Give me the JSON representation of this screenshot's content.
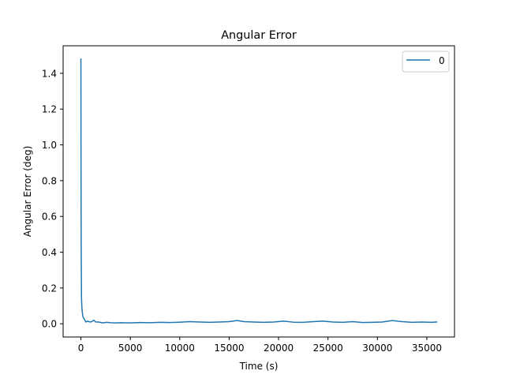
{
  "chart_data": {
    "type": "line",
    "title": "Angular Error",
    "xlabel": "Time (s)",
    "ylabel": "Angular Error (deg)",
    "xlim": [
      -1800,
      37800
    ],
    "ylim": [
      -0.074,
      1.554
    ],
    "xticks": [
      0,
      5000,
      10000,
      15000,
      20000,
      25000,
      30000,
      35000
    ],
    "yticks": [
      0.0,
      0.2,
      0.4,
      0.6,
      0.8,
      1.0,
      1.2,
      1.4
    ],
    "ytick_labels": [
      "0.0",
      "0.2",
      "0.4",
      "0.6",
      "0.8",
      "1.0",
      "1.2",
      "1.4"
    ],
    "legend": {
      "position": "top-right"
    },
    "grid": false,
    "series": [
      {
        "name": "0",
        "color": "#1f77b4",
        "x": [
          0,
          10,
          30,
          60,
          100,
          150,
          200,
          300,
          400,
          500,
          700,
          900,
          1100,
          1300,
          1500,
          1800,
          2200,
          2600,
          3000,
          3500,
          4000,
          5000,
          6000,
          7000,
          8000,
          9000,
          10000,
          11000,
          12000,
          13000,
          14000,
          15000,
          15800,
          16500,
          17500,
          18500,
          19500,
          20500,
          21500,
          22500,
          23500,
          24500,
          25500,
          26500,
          27500,
          28500,
          29500,
          30500,
          31500,
          32500,
          33500,
          34500,
          35500,
          36000
        ],
        "y": [
          1.48,
          0.9,
          0.4,
          0.14,
          0.09,
          0.06,
          0.04,
          0.03,
          0.02,
          0.01,
          0.015,
          0.01,
          0.012,
          0.02,
          0.01,
          0.01,
          0.005,
          0.008,
          0.006,
          0.005,
          0.006,
          0.005,
          0.007,
          0.006,
          0.008,
          0.007,
          0.009,
          0.012,
          0.01,
          0.008,
          0.01,
          0.012,
          0.018,
          0.012,
          0.01,
          0.008,
          0.01,
          0.015,
          0.009,
          0.008,
          0.012,
          0.015,
          0.01,
          0.008,
          0.012,
          0.007,
          0.008,
          0.01,
          0.018,
          0.012,
          0.008,
          0.01,
          0.008,
          0.01
        ]
      }
    ]
  }
}
